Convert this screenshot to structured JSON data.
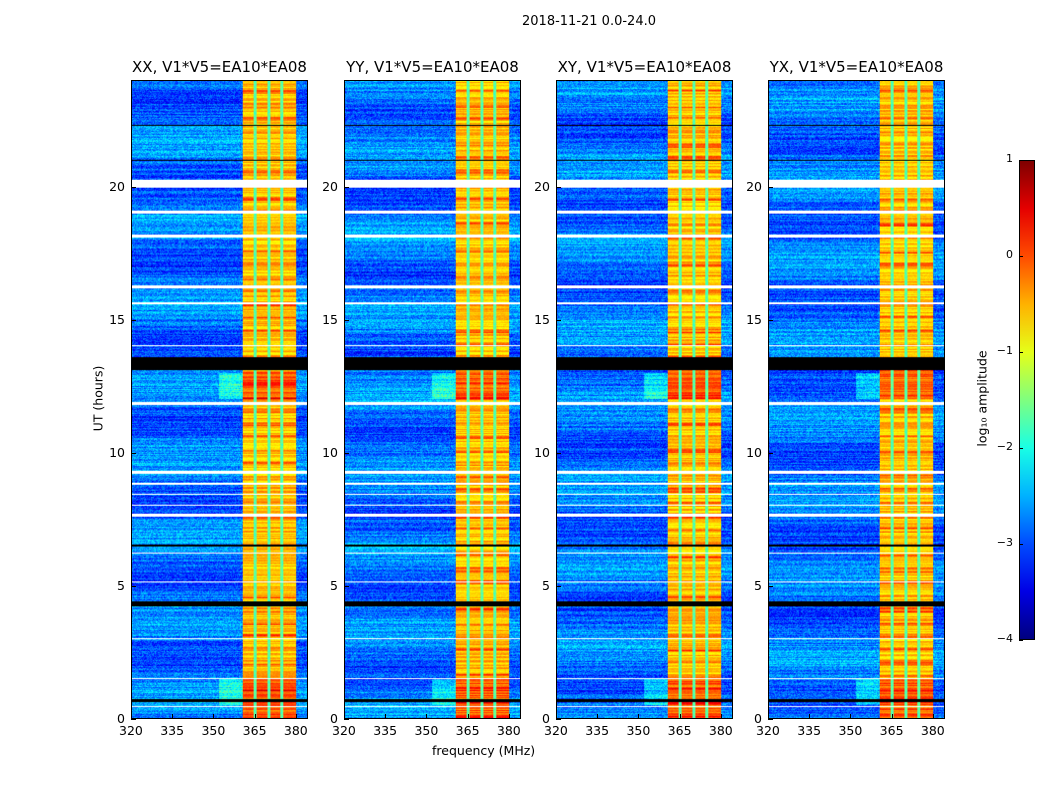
{
  "suptitle": "2018-11-21 0.0-24.0",
  "chart_data": {
    "type": "heatmap",
    "title": "2018-11-21 0.0-24.0",
    "xlabel": "frequency (MHz)",
    "ylabel": "UT (hours)",
    "xlim": [
      320,
      384.4
    ],
    "ylim": [
      0,
      24
    ],
    "xticks": [
      320,
      335,
      350,
      365,
      380
    ],
    "yticks": [
      0,
      5,
      10,
      15,
      20
    ],
    "panels": [
      {
        "title": "XX, V1*V5=EA10*EA08"
      },
      {
        "title": "YY, V1*V5=EA10*EA08"
      },
      {
        "title": "XY, V1*V5=EA10*EA08"
      },
      {
        "title": "YX, V1*V5=EA10*EA08"
      }
    ],
    "colorbar": {
      "label": "log₁₀ amplitude",
      "colormap": "jet",
      "range": [
        -4,
        1
      ],
      "ticks": [
        1,
        0,
        -1,
        -2,
        -3,
        -4
      ],
      "tick_labels": [
        "1",
        "0",
        "−1",
        "−2",
        "−3",
        "−4"
      ]
    },
    "background_level": -2.8,
    "rfi_band_mhz": [
      360.7,
      380.4
    ],
    "rfi_band_level": -0.6,
    "flagged_hours": [
      [
        20.0,
        20.3
      ],
      [
        19.0,
        19.1
      ],
      [
        18.1,
        18.2
      ],
      [
        16.2,
        16.3
      ],
      [
        15.6,
        15.65
      ],
      [
        14.0,
        14.05
      ],
      [
        11.8,
        11.9
      ],
      [
        9.2,
        9.3
      ],
      [
        8.8,
        8.85
      ],
      [
        8.4,
        8.45
      ],
      [
        8.0,
        8.05
      ],
      [
        7.6,
        7.7
      ],
      [
        6.2,
        6.25
      ],
      [
        5.1,
        5.15
      ],
      [
        2.95,
        3.0
      ],
      [
        1.45,
        1.5
      ],
      [
        0.4,
        0.45
      ]
    ],
    "zero_hours": [
      [
        13.1,
        13.6
      ],
      [
        4.2,
        4.4
      ],
      [
        6.45,
        6.55
      ],
      [
        21.0,
        21.05
      ],
      [
        22.3,
        22.35
      ],
      [
        0.6,
        0.7
      ]
    ]
  }
}
